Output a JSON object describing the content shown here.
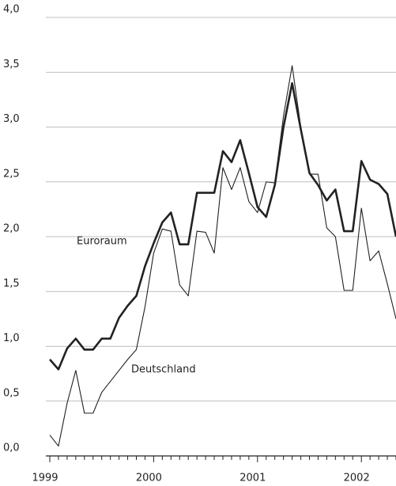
{
  "chart_data": {
    "type": "line",
    "categories": [
      "1999",
      null,
      null,
      null,
      null,
      null,
      null,
      null,
      null,
      null,
      null,
      null,
      "2000",
      null,
      null,
      null,
      null,
      null,
      null,
      null,
      null,
      null,
      null,
      null,
      "2001",
      null,
      null,
      null,
      null,
      null,
      null,
      null,
      null,
      null,
      null,
      null,
      "2002",
      null,
      null,
      null,
      null
    ],
    "series": [
      {
        "name": "Euroraum",
        "color": "#222222",
        "values": [
          0.88,
          0.79,
          0.98,
          1.07,
          0.97,
          0.97,
          1.07,
          1.07,
          1.26,
          1.37,
          1.46,
          1.73,
          1.94,
          2.13,
          2.22,
          1.93,
          1.93,
          2.4,
          2.4,
          2.4,
          2.78,
          2.68,
          2.88,
          2.58,
          2.27,
          2.18,
          2.47,
          3.0,
          3.4,
          2.98,
          2.58,
          2.47,
          2.33,
          2.43,
          2.05,
          2.05,
          2.69,
          2.52,
          2.48,
          2.39,
          2.0
        ]
      },
      {
        "name": "Deutschland",
        "color": "#222222",
        "values": [
          0.19,
          0.09,
          0.48,
          0.78,
          0.39,
          0.39,
          0.58,
          0.68,
          0.78,
          0.88,
          0.97,
          1.36,
          1.85,
          2.07,
          2.05,
          1.56,
          1.46,
          2.05,
          2.04,
          1.85,
          2.63,
          2.43,
          2.63,
          2.32,
          2.22,
          2.5,
          2.49,
          3.1,
          3.56,
          3.0,
          2.57,
          2.57,
          2.08,
          2.0,
          1.51,
          1.51,
          2.26,
          1.78,
          1.87,
          1.57,
          1.25
        ]
      }
    ],
    "ylim": [
      0,
      4
    ],
    "yticks": [
      {
        "value": 0,
        "label": "0,0"
      },
      {
        "value": 0.5,
        "label": "0,5"
      },
      {
        "value": 1,
        "label": "1,0"
      },
      {
        "value": 1.5,
        "label": "1,5"
      },
      {
        "value": 2,
        "label": "2,0"
      },
      {
        "value": 2.5,
        "label": "2,5"
      },
      {
        "value": 3,
        "label": "3,0"
      },
      {
        "value": 3.5,
        "label": "3,5"
      },
      {
        "value": 4,
        "label": "4,0"
      }
    ],
    "grid": true
  }
}
